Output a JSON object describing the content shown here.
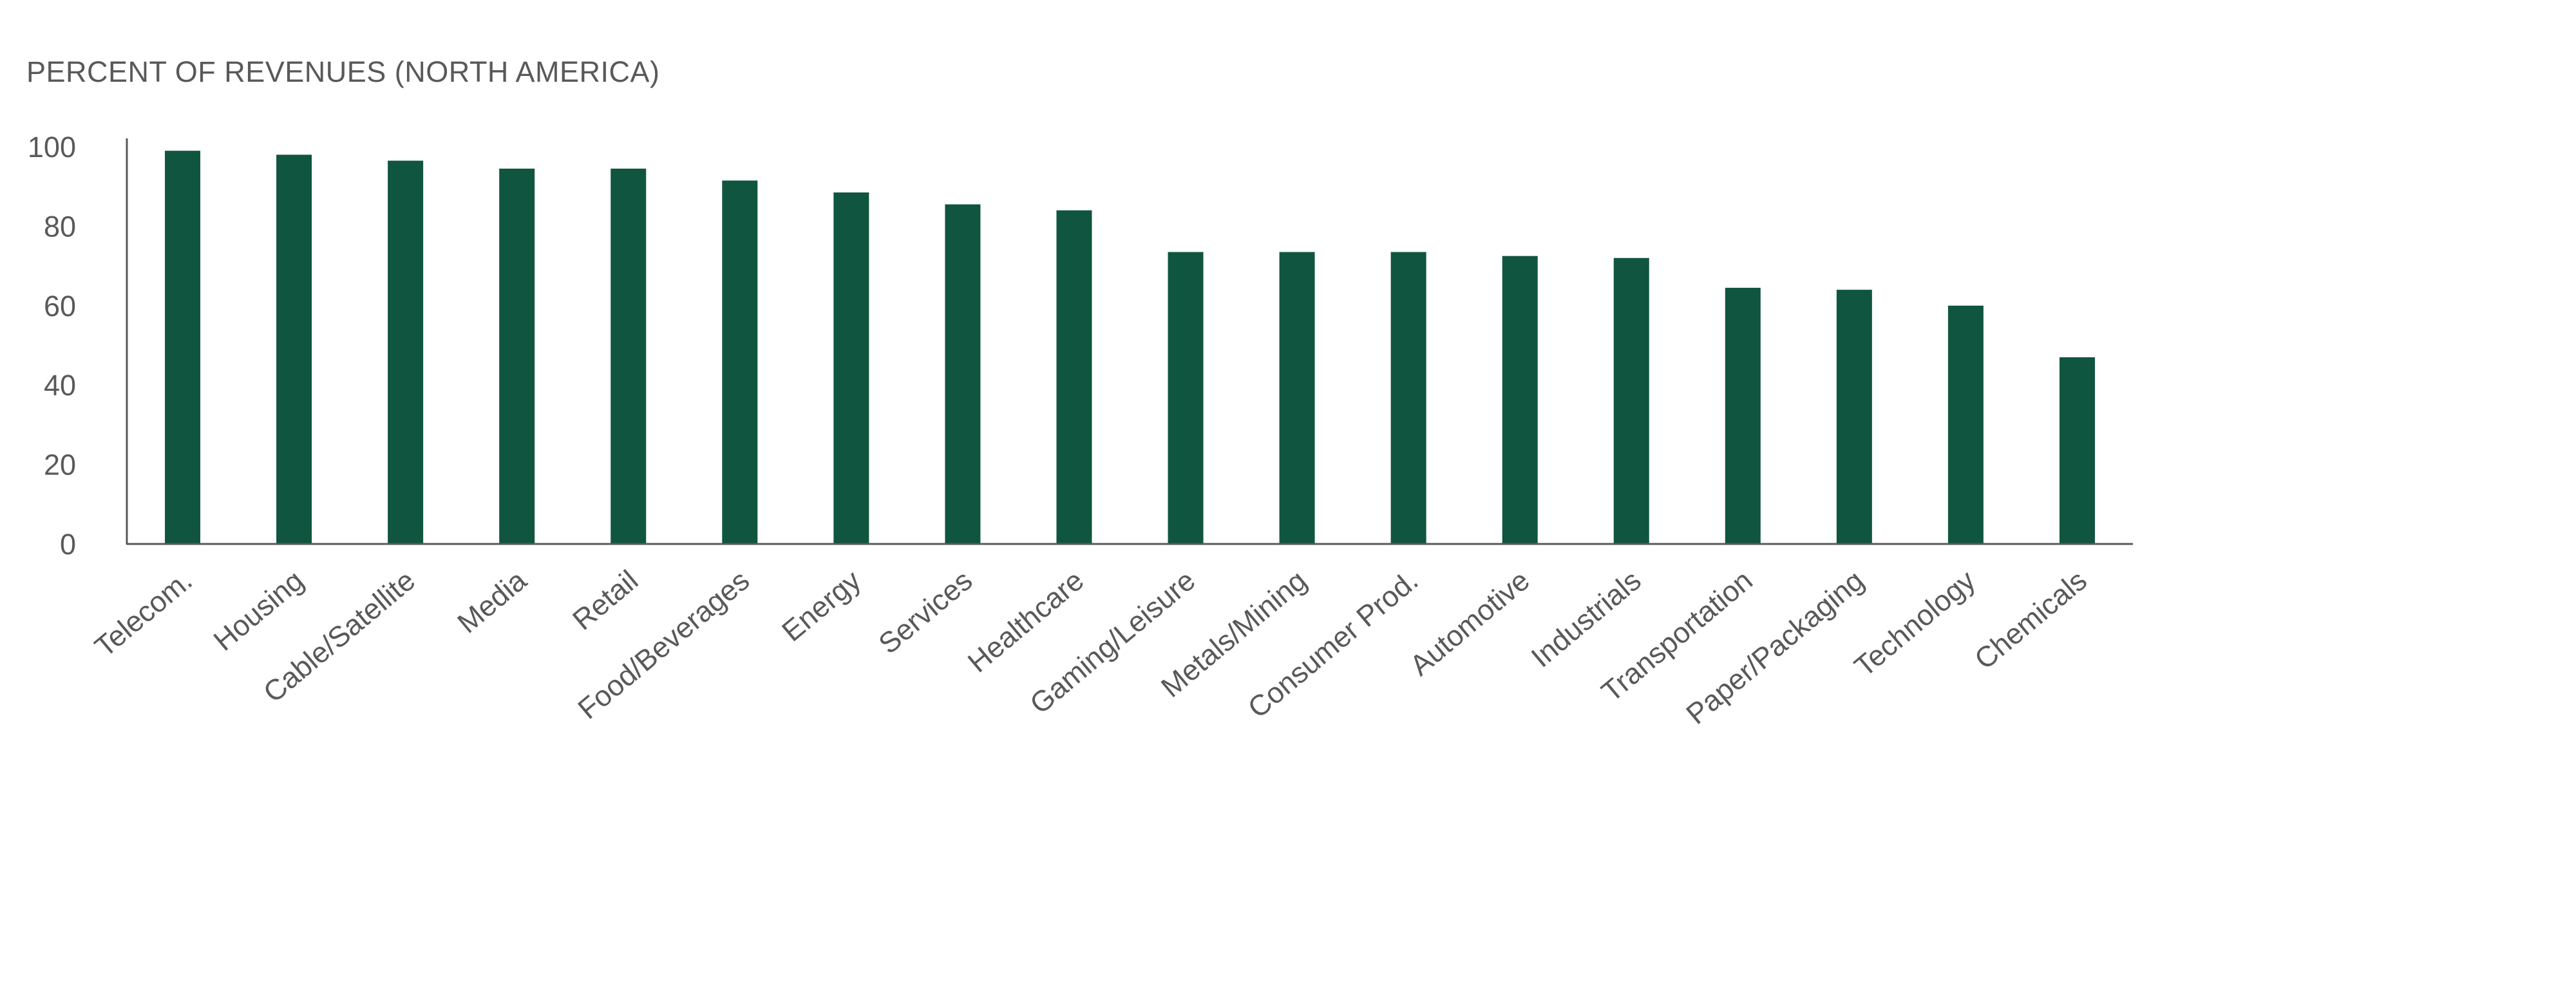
{
  "chart_data": {
    "type": "bar",
    "title": "PERCENT OF REVENUES (NORTH AMERICA)",
    "xlabel": "",
    "ylabel": "",
    "ylim": [
      0,
      100
    ],
    "yticks": [
      0,
      20,
      40,
      60,
      80,
      100
    ],
    "grid": false,
    "legend": "none",
    "bar_color": "#10553F",
    "axis_color": "#595959",
    "text_color": "#595959",
    "categories": [
      "Telecom.",
      "Housing",
      "Cable/Satellite",
      "Media",
      "Retail",
      "Food/Beverages",
      "Energy",
      "Services",
      "Healthcare",
      "Gaming/Leisure",
      "Metals/Mining",
      "Consumer Prod.",
      "Automotive",
      "Industrials",
      "Transportation",
      "Paper/Packaging",
      "Technology",
      "Chemicals"
    ],
    "values": [
      99,
      98,
      96.5,
      94.5,
      94.5,
      91.5,
      88.5,
      85.5,
      84,
      73.5,
      73.5,
      73.5,
      72.5,
      72,
      64.5,
      64,
      60,
      47
    ]
  }
}
